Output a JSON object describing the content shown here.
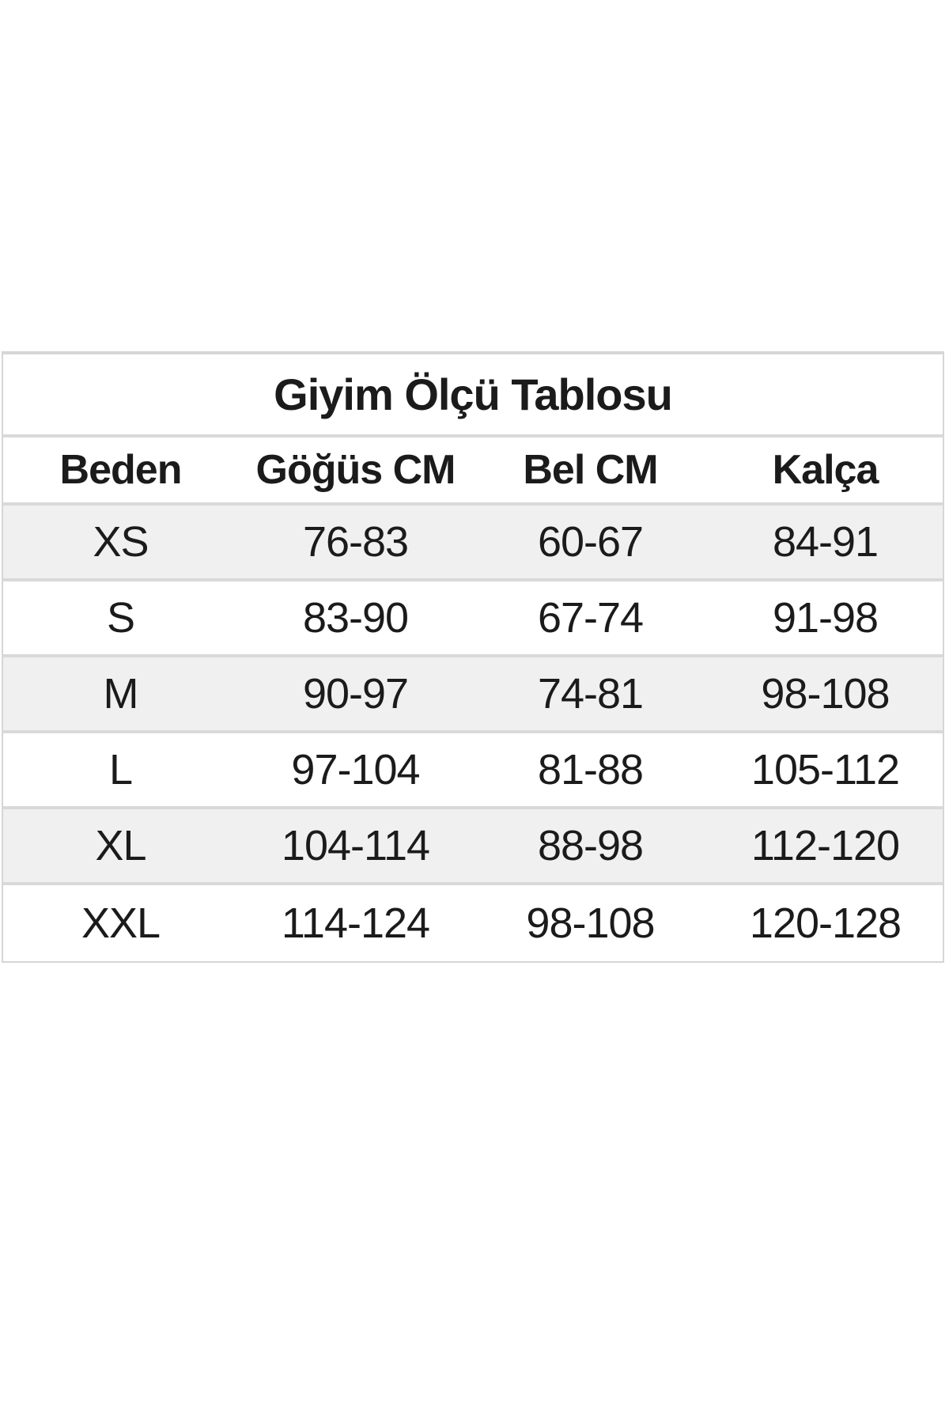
{
  "page_title": "Giyim Ölçü Tablosu",
  "chart_data": {
    "type": "table",
    "title": "Giyim Ölçü Tablosu",
    "columns": [
      "Beden",
      "Göğüs CM",
      "Bel CM",
      "Kalça"
    ],
    "rows": [
      [
        "XS",
        "76-83",
        "60-67",
        "84-91"
      ],
      [
        "S",
        "83-90",
        "67-74",
        "91-98"
      ],
      [
        "M",
        "90-97",
        "74-81",
        "98-108"
      ],
      [
        "L",
        "97-104",
        "81-88",
        "105-112"
      ],
      [
        "XL",
        "104-114",
        "88-98",
        "112-120"
      ],
      [
        "XXL",
        "114-124",
        "98-108",
        "120-128"
      ]
    ],
    "units": "CM",
    "layout_hints": {
      "striped_row_sizes": [
        "XS",
        "M",
        "XL"
      ],
      "header_bold": true,
      "title_centered": true,
      "grid": "horizontal-separators-only"
    }
  },
  "colors": {
    "stripe": "#f0f0f0",
    "separator": "#d9d9d9",
    "border": "#d6d6d6",
    "text": "#1b1b1b",
    "background": "#ffffff"
  }
}
